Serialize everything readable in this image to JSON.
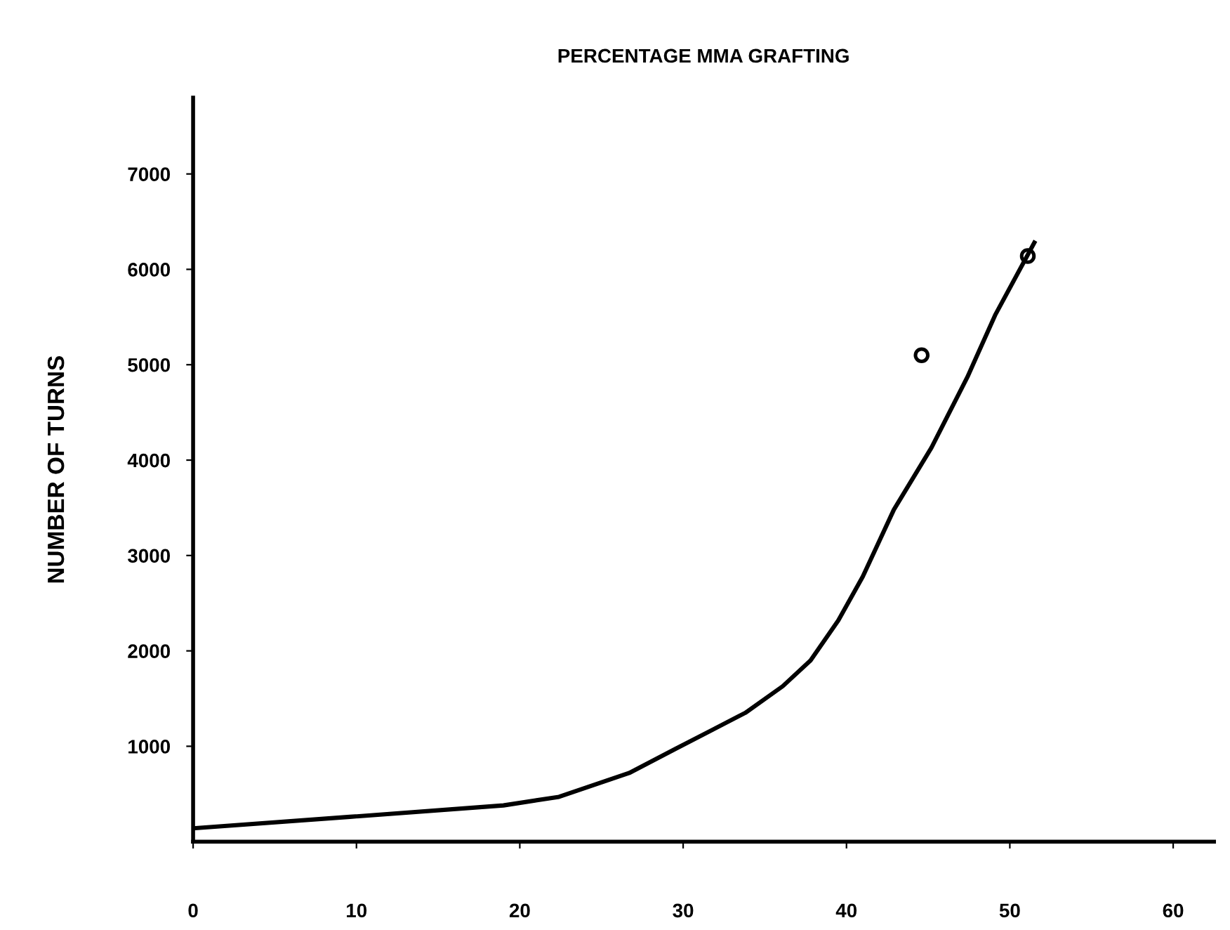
{
  "chart_data": {
    "type": "line",
    "title": "PERCENTAGE MMA GRAFTING",
    "ylabel": "NUMBER OF TURNS",
    "series": [
      {
        "color": "#000000",
        "x": [
          0,
          9.6,
          19.0,
          22.4,
          26.7,
          29.5,
          33.8,
          36.1,
          37.8,
          39.5,
          41.0,
          42.9,
          45.2,
          47.4,
          49.1,
          51.5
        ],
        "values": [
          140,
          260,
          380,
          470,
          720,
          970,
          1350,
          1630,
          1900,
          2320,
          2780,
          3480,
          4130,
          4870,
          5520,
          6280
        ]
      },
      {
        "type": "scatter",
        "color": "#000000",
        "marker": "circle",
        "x": [
          44.6,
          51.1
        ],
        "values": [
          5100,
          6140
        ]
      }
    ],
    "xlim": [
      0,
      62.5
    ],
    "xticks": [
      0,
      10,
      20,
      30,
      40,
      50,
      60
    ],
    "ylim": [
      0,
      7800
    ],
    "yticks": [
      1000,
      2000,
      3000,
      4000,
      {
        "value": 5000,
        "label": "5000"
      },
      6000,
      7000
    ],
    "grid": false,
    "legend": false
  }
}
